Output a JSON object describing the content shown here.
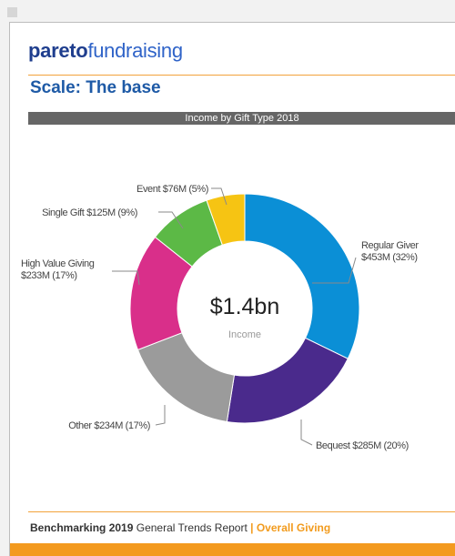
{
  "brand": {
    "strong": "pareto",
    "light": "fundraising"
  },
  "slide_title": "Scale: The base",
  "footer": {
    "bold": "Benchmarking 2019",
    "normal": "General Trends Report",
    "separator": "|",
    "accent": "Overall Giving"
  },
  "colors": {
    "accent_orange": "#f39a1f",
    "title_blue": "#1e5aa6",
    "banner_grey": "#666666"
  },
  "chart_data": {
    "type": "pie",
    "title": "Income by Gift Type 2018",
    "center_value": "$1.4bn",
    "center_label": "Income",
    "slices": [
      {
        "label": "Regular Giver",
        "value_text": "$453M (32%)",
        "value": 453,
        "color": "#0b8fd6"
      },
      {
        "label": "Bequest",
        "value_text": "$285M (20%)",
        "value": 285,
        "color": "#4a2a8c"
      },
      {
        "label": "Other",
        "value_text": "$234M (17%)",
        "value": 234,
        "color": "#9b9b9b"
      },
      {
        "label": "High Value Giving",
        "value_text": "$233M (17%)",
        "value": 233,
        "color": "#d92f8a"
      },
      {
        "label": "Single Gift",
        "value_text": "$125M (9%)",
        "value": 125,
        "color": "#5cb946"
      },
      {
        "label": "Event",
        "value_text": "$76M (5%)",
        "value": 76,
        "color": "#f6c413"
      }
    ]
  }
}
